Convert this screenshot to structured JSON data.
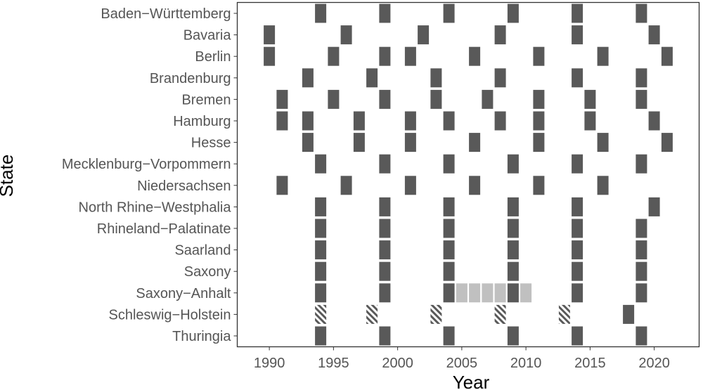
{
  "chart_data": {
    "type": "heatmap",
    "xlabel": "Year",
    "ylabel": "State",
    "xlim": [
      1987.5,
      2023.5
    ],
    "x_ticks": [
      1990,
      1995,
      2000,
      2005,
      2010,
      2015,
      2020
    ],
    "legend": "none",
    "grid": false,
    "colors": {
      "regular": "#595959",
      "extended": "#c0c0c0",
      "hatched": "#595959"
    },
    "categories": [
      "Baden−Württemberg",
      "Bavaria",
      "Berlin",
      "Brandenburg",
      "Bremen",
      "Hamburg",
      "Hesse",
      "Mecklenburg−Vorpommern",
      "Niedersachsen",
      "North Rhine−Westphalia",
      "Rhineland−Palatinate",
      "Saarland",
      "Saxony",
      "Saxony−Anhalt",
      "Schleswig−Holstein",
      "Thuringia"
    ],
    "series": [
      {
        "style": "regular",
        "values": [
          [
            1994,
            1999,
            2004,
            2009,
            2014,
            2019
          ],
          [
            1990,
            1996,
            2002,
            2008,
            2014,
            2020
          ],
          [
            1990,
            1995,
            1999,
            2001,
            2006,
            2011,
            2016,
            2021
          ],
          [
            1993,
            1998,
            2003,
            2008,
            2014,
            2019
          ],
          [
            1991,
            1995,
            1999,
            2003,
            2007,
            2011,
            2015,
            2019
          ],
          [
            1991,
            1993,
            1997,
            2001,
            2004,
            2008,
            2011,
            2015,
            2020
          ],
          [
            1993,
            1997,
            2001,
            2006,
            2011,
            2016,
            2021
          ],
          [
            1994,
            1999,
            2004,
            2009,
            2014,
            2019
          ],
          [
            1991,
            1996,
            2001,
            2006,
            2011,
            2016
          ],
          [
            1994,
            1999,
            2004,
            2009,
            2014,
            2020
          ],
          [
            1994,
            1999,
            2004,
            2009,
            2014,
            2019
          ],
          [
            1994,
            1999,
            2004,
            2009,
            2014,
            2019
          ],
          [
            1994,
            1999,
            2004,
            2009,
            2014,
            2019
          ],
          [
            1994,
            1999,
            2004,
            2009,
            2014,
            2019
          ],
          [
            2018
          ],
          [
            1994,
            1999,
            2004,
            2009,
            2014,
            2019
          ]
        ]
      },
      {
        "style": "extended",
        "values": [
          [],
          [],
          [],
          [],
          [],
          [],
          [],
          [],
          [],
          [],
          [],
          [],
          [],
          [
            2005,
            2006,
            2007,
            2008,
            2010
          ],
          [],
          []
        ]
      },
      {
        "style": "hatched",
        "values": [
          [],
          [],
          [],
          [],
          [],
          [],
          [],
          [],
          [],
          [],
          [],
          [],
          [],
          [],
          [
            1994,
            1998,
            2003,
            2008,
            2013
          ],
          []
        ]
      }
    ]
  }
}
